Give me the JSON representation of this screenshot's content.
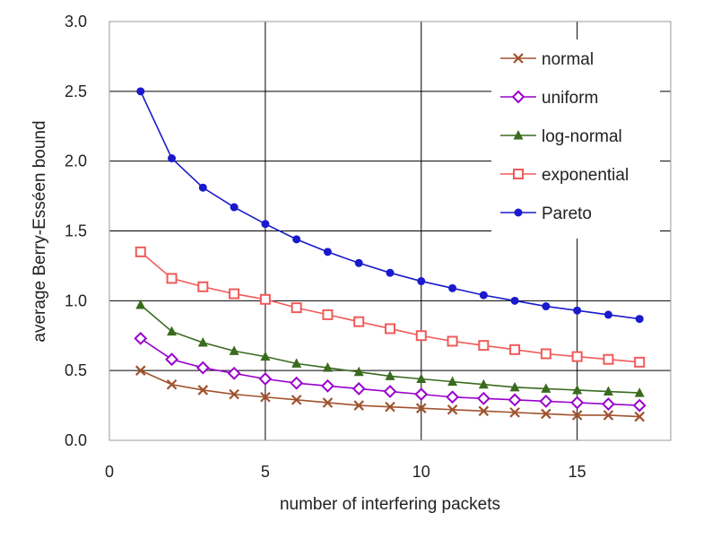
{
  "chart_data": {
    "type": "line",
    "title": "",
    "xlabel": "number of interfering packets",
    "ylabel": "average Berry-Esséen bound",
    "xlim": [
      0,
      18
    ],
    "ylim": [
      0.0,
      3.0
    ],
    "xticks": [
      0,
      5,
      10,
      15
    ],
    "xtick_labels": [
      "0",
      "5",
      "10",
      "15"
    ],
    "yticks": [
      0.0,
      0.5,
      1.0,
      1.5,
      2.0,
      2.5,
      3.0
    ],
    "ytick_labels": [
      "0.0",
      "0.5",
      "1.0",
      "1.5",
      "2.0",
      "2.5",
      "3.0"
    ],
    "grid": "vertical and horizontal major gridlines",
    "legend_position": "top-right",
    "x": [
      1,
      2,
      3,
      4,
      5,
      6,
      7,
      8,
      9,
      10,
      11,
      12,
      13,
      14,
      15,
      16,
      17
    ],
    "series": [
      {
        "name": "normal",
        "color": "#a0522d",
        "marker": "x",
        "values": [
          0.5,
          0.4,
          0.36,
          0.33,
          0.31,
          0.29,
          0.27,
          0.25,
          0.24,
          0.23,
          0.22,
          0.21,
          0.2,
          0.19,
          0.18,
          0.18,
          0.17
        ]
      },
      {
        "name": "uniform",
        "color": "#9900cc",
        "marker": "diamond-open",
        "values": [
          0.73,
          0.58,
          0.52,
          0.48,
          0.44,
          0.41,
          0.39,
          0.37,
          0.35,
          0.33,
          0.31,
          0.3,
          0.29,
          0.28,
          0.27,
          0.26,
          0.25
        ]
      },
      {
        "name": "log-normal",
        "color": "#3a6b1e",
        "marker": "triangle",
        "values": [
          0.97,
          0.78,
          0.7,
          0.64,
          0.6,
          0.55,
          0.52,
          0.49,
          0.46,
          0.44,
          0.42,
          0.4,
          0.38,
          0.37,
          0.36,
          0.35,
          0.34
        ]
      },
      {
        "name": "exponential",
        "color": "#f05a5a",
        "marker": "square-open",
        "values": [
          1.35,
          1.16,
          1.1,
          1.05,
          1.01,
          0.95,
          0.9,
          0.85,
          0.8,
          0.75,
          0.71,
          0.68,
          0.65,
          0.62,
          0.6,
          0.58,
          0.56
        ]
      },
      {
        "name": "Pareto",
        "color": "#1a1acc",
        "marker": "circle",
        "values": [
          2.5,
          2.02,
          1.81,
          1.67,
          1.55,
          1.44,
          1.35,
          1.27,
          1.2,
          1.14,
          1.09,
          1.04,
          1.0,
          0.96,
          0.93,
          0.9,
          0.87
        ]
      }
    ]
  }
}
